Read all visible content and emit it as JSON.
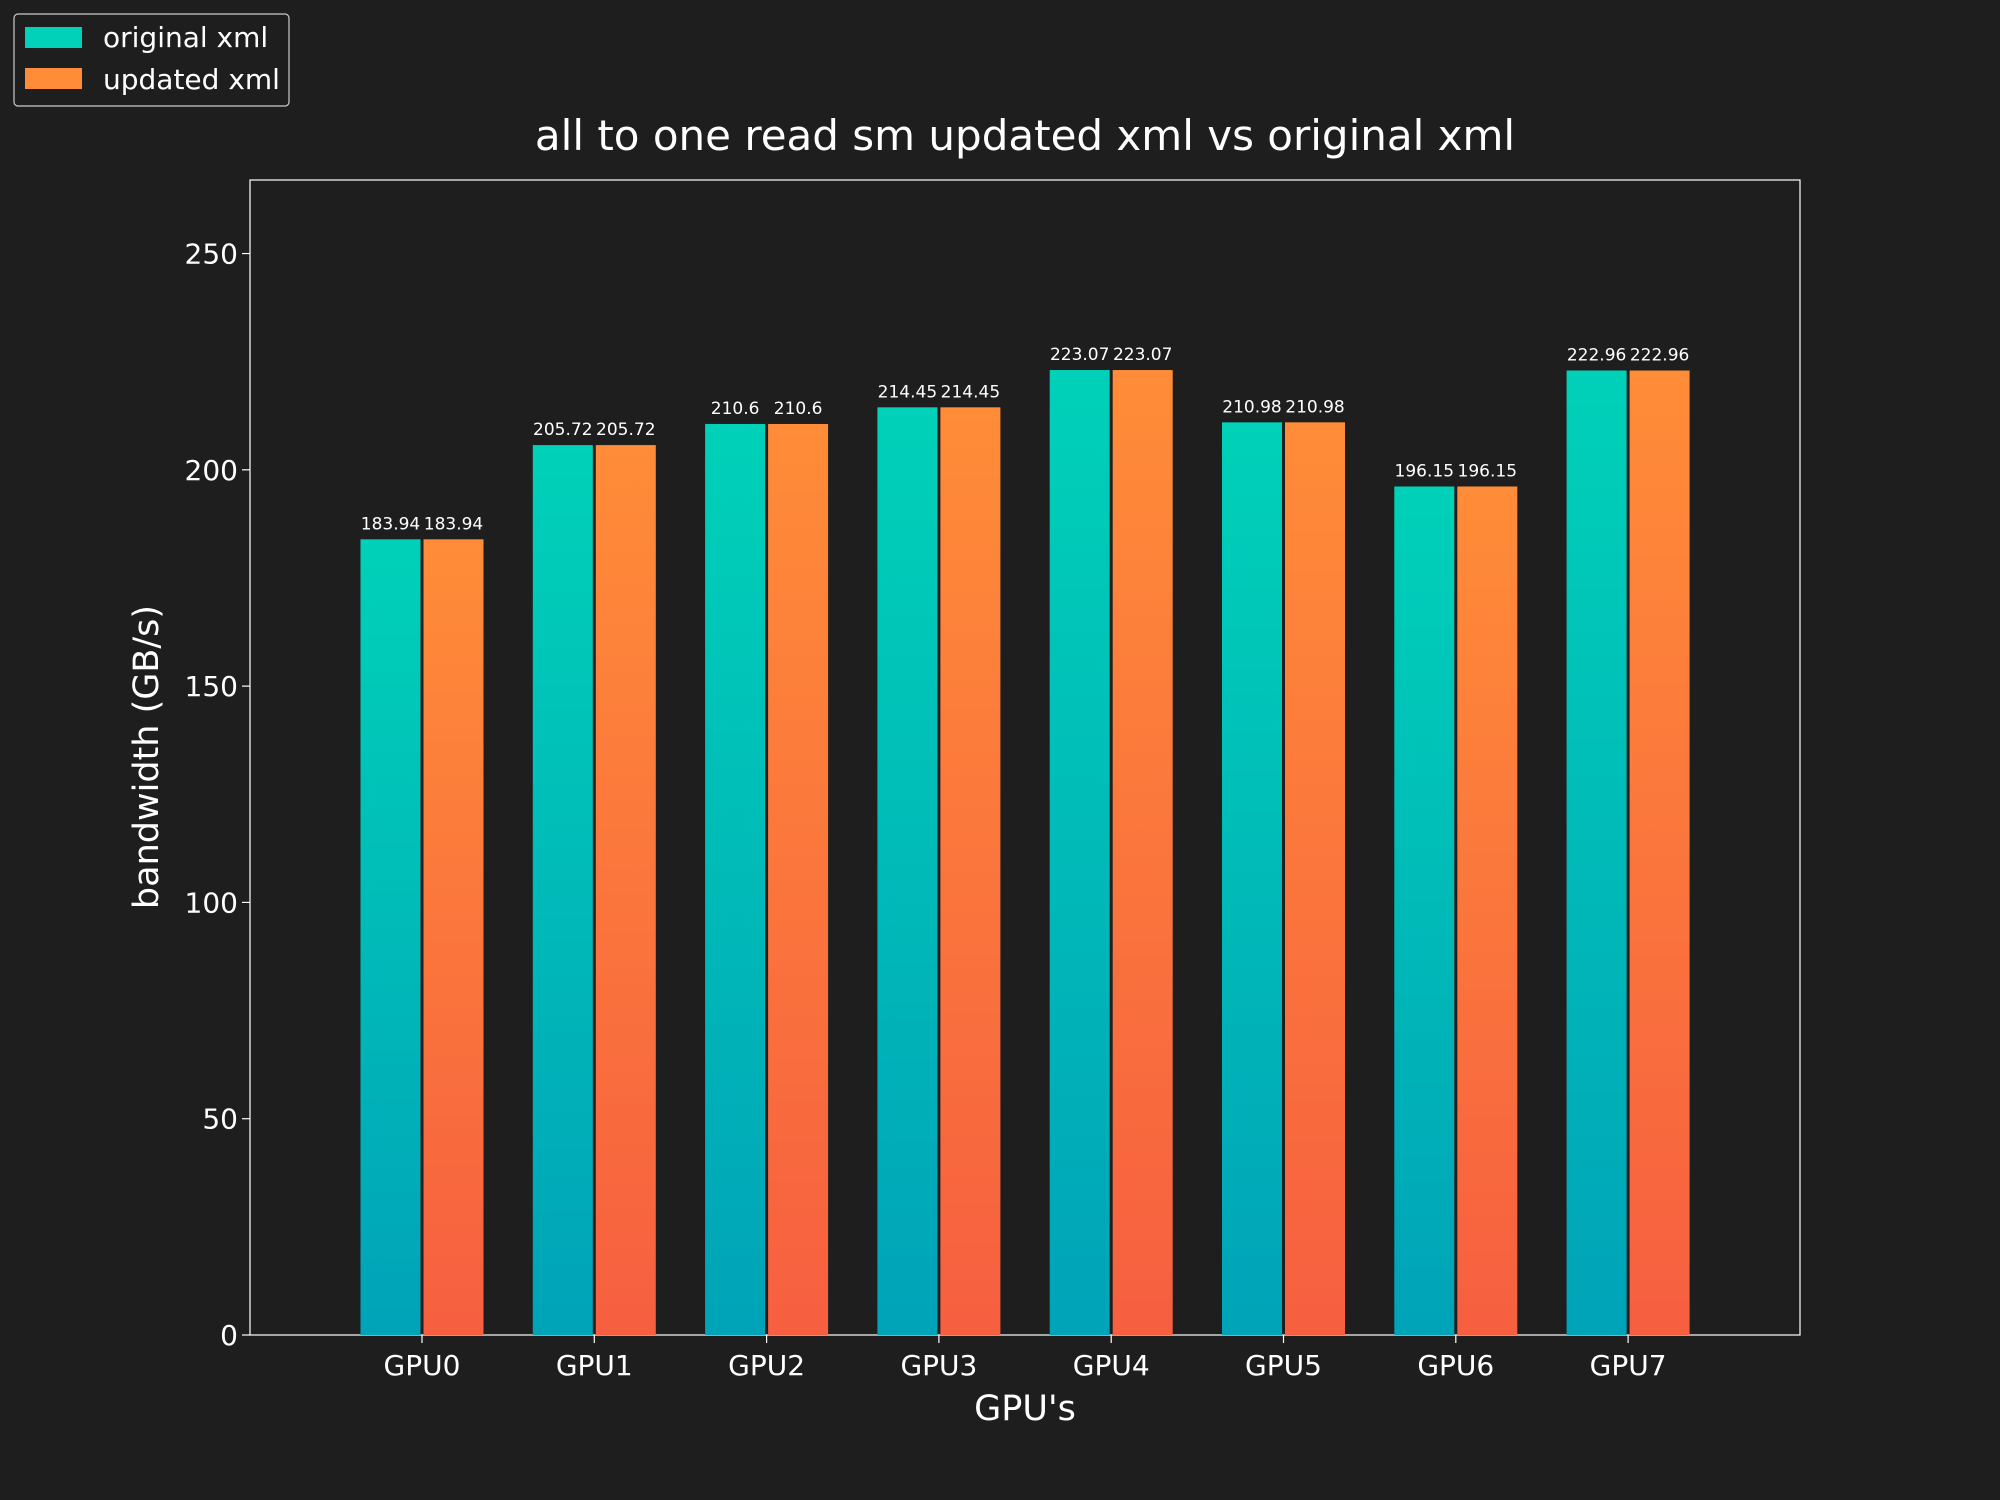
{
  "chart_data": {
    "type": "bar",
    "title": "all to one read sm updated xml vs original xml",
    "xlabel": "GPU's",
    "ylabel": "bandwidth (GB/s)",
    "ylim": [
      0,
      267
    ],
    "yticks": [
      0,
      50,
      100,
      150,
      200,
      250
    ],
    "categories": [
      "GPU0",
      "GPU1",
      "GPU2",
      "GPU3",
      "GPU4",
      "GPU5",
      "GPU6",
      "GPU7"
    ],
    "series": [
      {
        "name": "original xml",
        "values": [
          183.94,
          205.72,
          210.6,
          214.45,
          223.07,
          210.98,
          196.15,
          222.96
        ],
        "labels": [
          "183.94",
          "205.72",
          "210.6",
          "214.45",
          "223.07",
          "210.98",
          "196.15",
          "222.96"
        ],
        "color_top": "#00d1b8",
        "color_bottom": "#00a3b8"
      },
      {
        "name": "updated xml",
        "values": [
          183.94,
          205.72,
          210.6,
          214.45,
          223.07,
          210.98,
          196.15,
          222.96
        ],
        "labels": [
          "183.94",
          "205.72",
          "210.6",
          "214.45",
          "223.07",
          "210.98",
          "196.15",
          "222.96"
        ],
        "color_top": "#ff8c38",
        "color_bottom": "#f65f40"
      }
    ],
    "grid": false,
    "legend_position": "top-left",
    "background": "#1e1e1e"
  }
}
